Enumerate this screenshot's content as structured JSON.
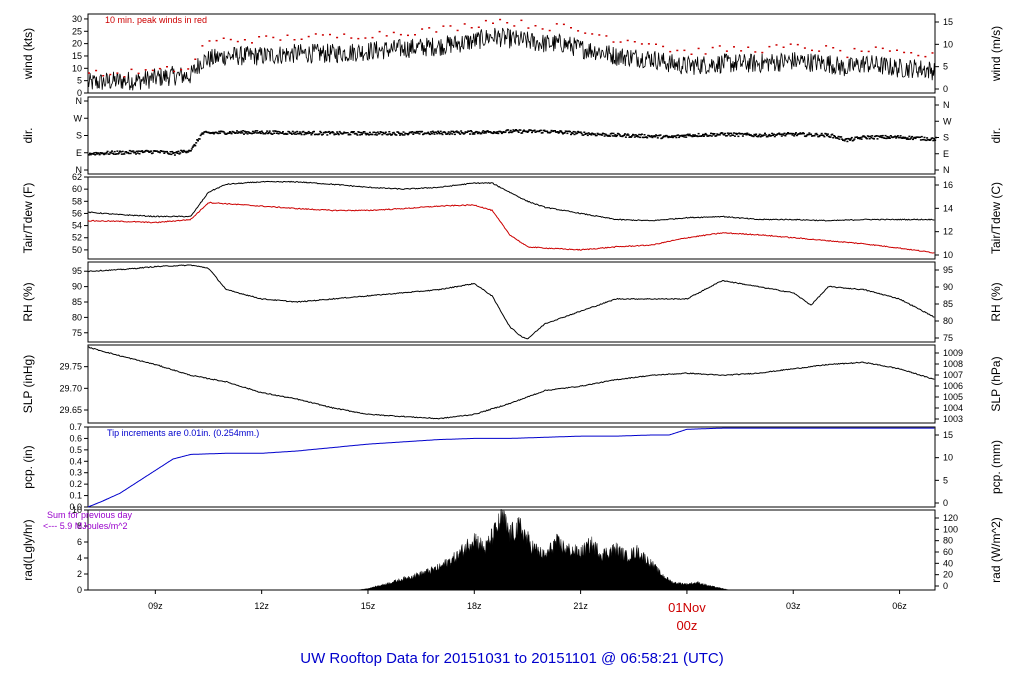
{
  "chart_data": {
    "type": "line",
    "title": "UW Rooftop Data for 20151031  to  20151101 @ 06:58:21  (UTC)",
    "x_axis": {
      "tick_labels": [
        "09z",
        "12z",
        "15z",
        "18z",
        "21z",
        "01Nov",
        "03z",
        "06z"
      ],
      "tick_hours": [
        9,
        12,
        15,
        18,
        21,
        24,
        27,
        30
      ],
      "date_marker": {
        "label": "01Nov",
        "sublabel": "00z",
        "hour": 24
      },
      "range_hours": [
        7.1,
        31.0
      ]
    },
    "panels": [
      {
        "id": "wind",
        "ylabel": "wind (kts)",
        "ylabel_right": "wind (m/s)",
        "ylim": [
          0,
          32
        ],
        "yticks": [
          "0",
          "5",
          "10",
          "15",
          "20",
          "25",
          "30"
        ],
        "yticks_right": [
          "0",
          "5",
          "10",
          "15"
        ],
        "annotation": "10 min. peak winds in red",
        "series": [
          {
            "name": "wind speed",
            "color": "#000000",
            "style": "noisy",
            "x": [
              7.1,
              8,
              8.5,
              9,
              9.5,
              10,
              10.3,
              11,
              12,
              13,
              14,
              15,
              16,
              17,
              18,
              18.5,
              19,
              19.5,
              20,
              20.5,
              21,
              21.5,
              22,
              23,
              23.5,
              24,
              25,
              26,
              27,
              28,
              28.5,
              29,
              29.5,
              30,
              30.5,
              31
            ],
            "y": [
              4,
              5,
              5,
              6,
              7,
              7,
              13,
              15,
              15,
              16,
              16,
              17,
              18,
              19,
              21,
              23,
              22,
              21,
              20,
              20,
              18,
              17,
              15,
              14,
              12,
              11,
              12,
              12,
              13,
              12,
              10,
              12,
              11,
              10,
              10,
              9
            ]
          },
          {
            "name": "10 min peak",
            "color": "#cc0000",
            "style": "dots",
            "x": [
              7.1,
              8,
              8.5,
              9,
              9.5,
              10,
              10.3,
              11,
              12,
              13,
              14,
              15,
              16,
              17,
              18,
              18.5,
              19,
              19.5,
              20,
              20.5,
              21,
              21.5,
              22,
              23,
              23.5,
              24,
              25,
              26,
              27,
              28,
              28.5,
              29,
              29.5,
              30,
              30.5,
              31
            ],
            "y": [
              8,
              8,
              9,
              9,
              10,
              10,
              20,
              22,
              22,
              23,
              23,
              24,
              25,
              26,
              28,
              30,
              29,
              28,
              27,
              27,
              25,
              24,
              22,
              21,
              18,
              17,
              18,
              18,
              19,
              18,
              16,
              18,
              17,
              16,
              16,
              15
            ]
          }
        ]
      },
      {
        "id": "dir",
        "ylabel": "dir.",
        "ylabel_right": "dir.",
        "ylim": [
          0,
          4
        ],
        "yticks": [
          "N",
          "E",
          "S",
          "W",
          "N"
        ],
        "yticks_right": [
          "N",
          "E",
          "S",
          "W",
          "N"
        ],
        "series": [
          {
            "name": "wind direction",
            "color": "#000000",
            "style": "dots",
            "x": [
              7.1,
              8,
              9,
              9.5,
              10,
              10.3,
              11,
              12,
              14,
              16,
              18,
              19,
              20,
              21,
              22,
              23,
              23.5,
              24,
              25,
              26,
              27,
              28,
              28.5,
              29,
              30,
              31
            ],
            "y": [
              1.1,
              1.15,
              1.2,
              1.1,
              1.3,
              2.15,
              2.2,
              2.2,
              2.15,
              2.15,
              2.2,
              2.25,
              2.25,
              2.15,
              2.05,
              2.0,
              1.95,
              2.05,
              2.1,
              2.05,
              2.1,
              2.05,
              1.8,
              1.95,
              1.95,
              1.85
            ]
          }
        ]
      },
      {
        "id": "temp",
        "ylabel": "Tair/Tdew (F)",
        "ylabel_right": "Tair/Tdew (C)",
        "ylim": [
          48.5,
          62
        ],
        "yticks": [
          "50",
          "52",
          "54",
          "56",
          "58",
          "60",
          "62"
        ],
        "yticks_right": [
          "10",
          "12",
          "14",
          "16"
        ],
        "series": [
          {
            "name": "Tair",
            "color": "#000000",
            "x": [
              7.1,
              8,
              9,
              10,
              10.5,
              11,
              12,
              13,
              14,
              15,
              16,
              17,
              18,
              18.5,
              19,
              19.5,
              20,
              21,
              22,
              23,
              24,
              25,
              26,
              27,
              28,
              29,
              30,
              31
            ],
            "y": [
              56.2,
              55.8,
              55.5,
              55.5,
              59.5,
              60.8,
              61.2,
              61.2,
              60.8,
              60.3,
              60.0,
              60.3,
              61.0,
              61.0,
              59.5,
              58.0,
              57.0,
              56.0,
              55.0,
              54.8,
              55.3,
              55.5,
              55.0,
              55.0,
              54.8,
              55.0,
              55.0,
              55.0
            ]
          },
          {
            "name": "Tdew",
            "color": "#cc0000",
            "x": [
              7.1,
              8,
              9,
              10,
              10.5,
              11,
              12,
              13,
              14,
              15,
              16,
              17,
              18,
              18.5,
              19,
              19.5,
              20,
              21,
              22,
              23,
              24,
              25,
              26,
              27,
              28,
              29,
              30,
              31
            ],
            "y": [
              54.8,
              54.7,
              54.5,
              55.0,
              57.8,
              57.6,
              57.2,
              56.8,
              56.5,
              56.5,
              56.8,
              57.2,
              57.4,
              56.5,
              52.5,
              50.5,
              50.3,
              50.0,
              50.5,
              50.8,
              52.0,
              52.8,
              52.5,
              52.0,
              51.5,
              51.0,
              50.3,
              49.5
            ]
          }
        ]
      },
      {
        "id": "rh",
        "ylabel": "RH (%)",
        "ylabel_right": "RH (%)",
        "ylim": [
          72,
          98
        ],
        "yticks": [
          "75",
          "80",
          "85",
          "90",
          "95"
        ],
        "yticks_right": [
          "75",
          "80",
          "85",
          "90",
          "95"
        ],
        "series": [
          {
            "name": "RH",
            "color": "#000000",
            "x": [
              7.1,
              8,
              9,
              10,
              10.5,
              11,
              12,
              13,
              14,
              15,
              16,
              17,
              18,
              18.5,
              19,
              19.3,
              19.5,
              20,
              21,
              22,
              23,
              24,
              25,
              26,
              27,
              27.5,
              28,
              29,
              30,
              31
            ],
            "y": [
              95,
              95.5,
              96.5,
              97,
              96,
              89,
              86,
              85,
              86,
              87,
              88,
              89,
              91,
              87,
              77,
              74,
              73,
              78,
              82,
              86,
              86,
              86,
              92,
              90,
              88,
              84,
              90,
              89,
              86,
              80
            ]
          }
        ]
      },
      {
        "id": "slp",
        "ylabel": "SLP (inHg)",
        "ylabel_right": "SLP (hPa)",
        "ylim": [
          29.62,
          29.8
        ],
        "yticks": [
          "29.65",
          "29.70",
          "29.75"
        ],
        "yticks_right": [
          "1003",
          "1004",
          "1005",
          "1006",
          "1007",
          "1008",
          "1009"
        ],
        "series": [
          {
            "name": "SLP",
            "color": "#000000",
            "x": [
              7.1,
              8,
              9,
              10,
              11,
              12,
              13,
              14,
              15,
              16,
              17,
              18,
              19,
              20,
              21,
              22,
              23,
              24,
              25,
              26,
              27,
              28,
              29,
              30,
              31
            ],
            "y": [
              29.795,
              29.775,
              29.755,
              29.73,
              29.715,
              29.69,
              29.675,
              29.655,
              29.64,
              29.635,
              29.63,
              29.64,
              29.665,
              29.695,
              29.705,
              29.72,
              29.73,
              29.735,
              29.73,
              29.735,
              29.745,
              29.755,
              29.76,
              29.745,
              29.72
            ]
          }
        ]
      },
      {
        "id": "pcp",
        "ylabel": "pcp. (in)",
        "ylabel_right": "pcp. (mm)",
        "ylim": [
          0,
          0.7
        ],
        "yticks": [
          "0.0",
          "0.1",
          "0.2",
          "0.3",
          "0.4",
          "0.5",
          "0.6",
          "0.7"
        ],
        "yticks_right": [
          "0",
          "5",
          "10",
          "15"
        ],
        "annotation": "Tip increments are 0.01in. (0.254mm.)",
        "series": [
          {
            "name": "precip",
            "color": "#0000cc",
            "style": "step",
            "x": [
              7.1,
              7.5,
              8,
              8.5,
              9,
              9.5,
              10,
              11,
              12,
              13,
              14,
              15,
              16,
              17,
              18,
              19,
              20,
              21,
              22,
              23,
              23.5,
              24,
              25,
              26,
              27,
              28,
              29,
              30,
              31
            ],
            "y": [
              0,
              0.05,
              0.12,
              0.22,
              0.32,
              0.42,
              0.46,
              0.47,
              0.47,
              0.49,
              0.52,
              0.55,
              0.57,
              0.59,
              0.6,
              0.6,
              0.61,
              0.62,
              0.62,
              0.63,
              0.63,
              0.68,
              0.69,
              0.69,
              0.69,
              0.69,
              0.69,
              0.69,
              0.69
            ]
          }
        ]
      },
      {
        "id": "rad",
        "ylabel": "rad(Lgly/hr)",
        "ylabel_right": "rad (W/m^2)",
        "ylim": [
          0,
          10
        ],
        "yticks": [
          "0",
          "2",
          "4",
          "6",
          "8",
          "10"
        ],
        "yticks_right": [
          "0",
          "20",
          "40",
          "60",
          "80",
          "100",
          "120"
        ],
        "annotation_lines": [
          "Sum for previous day",
          "<--- 5.9 MJoules/m^2"
        ],
        "series": [
          {
            "name": "radiation",
            "color": "#000000",
            "style": "filled",
            "x": [
              14.7,
              15,
              15.5,
              16,
              16.5,
              17,
              17.5,
              17.8,
              18,
              18.3,
              18.6,
              18.8,
              19,
              19.3,
              19.6,
              20,
              20.3,
              20.6,
              21,
              21.3,
              21.6,
              22,
              22.3,
              22.6,
              23,
              23.3,
              23.6,
              24,
              24.3,
              24.6,
              25,
              25.2
            ],
            "y": [
              0,
              0.2,
              0.8,
              1.5,
              2.2,
              3.0,
              4.5,
              6.0,
              7.0,
              5.5,
              8.0,
              9.8,
              7.5,
              8.5,
              6.0,
              4.5,
              6.5,
              5.5,
              5.0,
              6.2,
              4.8,
              5.5,
              4.5,
              5.2,
              3.5,
              2.0,
              1.0,
              0.8,
              1.0,
              0.6,
              0.2,
              0
            ]
          }
        ]
      }
    ]
  }
}
